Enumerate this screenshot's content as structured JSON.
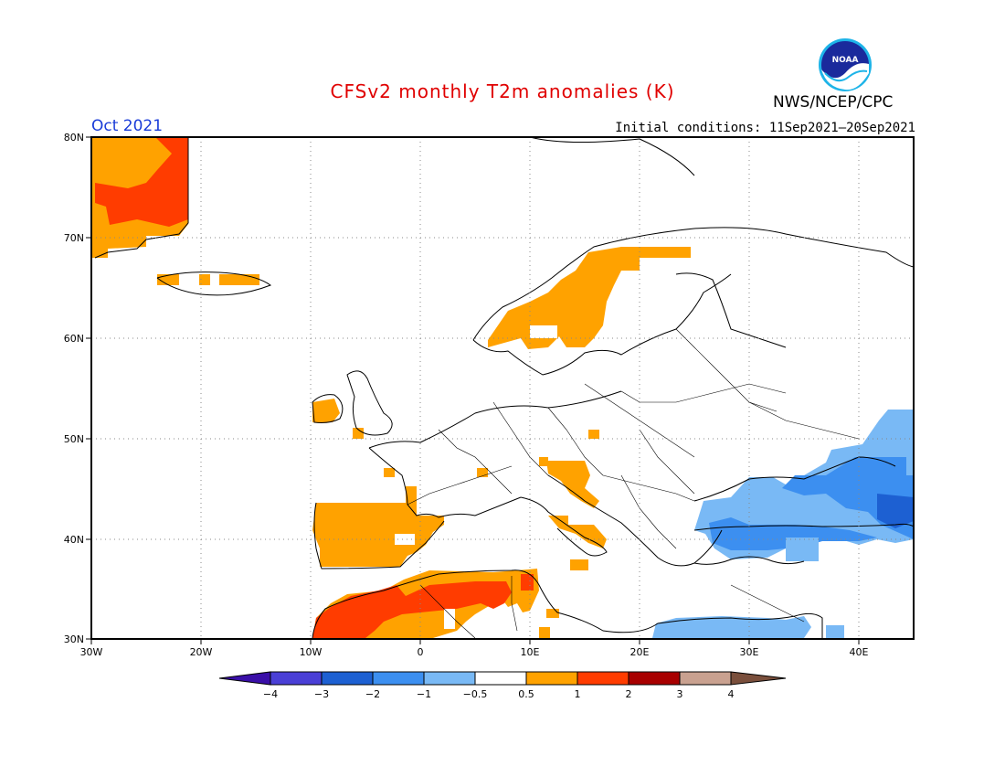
{
  "header": {
    "title": "CFSv2 monthly T2m anomalies (K)",
    "agency": "NWS/NCEP/CPC",
    "period": "Oct 2021",
    "initial_conditions": "Initial conditions: 11Sep2021—20Sep2021",
    "logo_text": "NOAA"
  },
  "map": {
    "region": "Europe",
    "lon_range": [
      -30,
      45
    ],
    "lat_range": [
      30,
      80
    ],
    "lon_ticks": [
      "30W",
      "20W",
      "10W",
      "0",
      "10E",
      "20E",
      "30E",
      "40E"
    ],
    "lat_ticks": [
      "80N",
      "70N",
      "60N",
      "50N",
      "40N",
      "30N"
    ],
    "grid": true
  },
  "legend": {
    "labels": [
      "−4",
      "−3",
      "−2",
      "−1",
      "−0.5",
      "0.5",
      "1",
      "2",
      "3",
      "4"
    ],
    "colors": [
      "#3a0fa8",
      "#4a3fd6",
      "#1d60d2",
      "#3c8ff0",
      "#79b9f5",
      "#ffffff",
      "#ffa200",
      "#ff3c00",
      "#a80000",
      "#c9a190",
      "#7a4f3c"
    ]
  },
  "colors": {
    "warm_0_5_1": "#ffa200",
    "warm_1_2": "#ff3c00",
    "cold_0_5_1": "#79b9f5",
    "cold_1_2": "#3c8ff0",
    "cold_2_3": "#1d60d2"
  }
}
